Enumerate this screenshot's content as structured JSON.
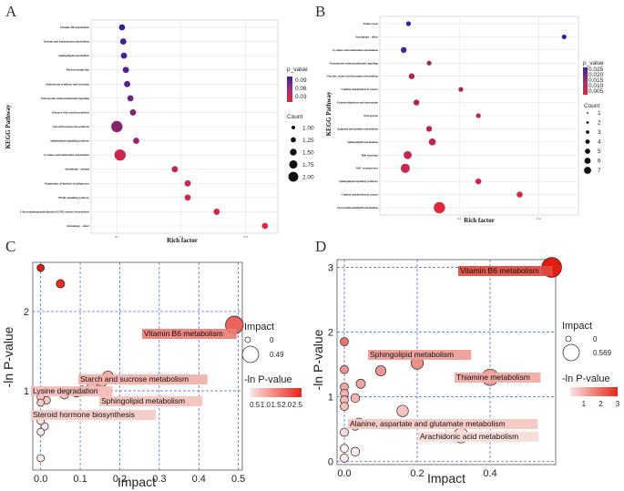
{
  "panel_labels": [
    "A",
    "B",
    "C",
    "D"
  ],
  "chart_data": [
    {
      "panel": "A",
      "type": "scatter",
      "xlabel": "Rich factor",
      "ylabel": "KEGG Pathway",
      "xticks": [
        0.1,
        0.2,
        0.3
      ],
      "xlim": [
        0.06,
        0.35
      ],
      "color_legend": {
        "title": "p_value",
        "ticks": [
          "0.09",
          "0.06",
          "0.03"
        ],
        "low_color": "#e0283c",
        "high_color": "#3a1f9a"
      },
      "size_legend": {
        "title": "Count",
        "ticks": [
          "1.00",
          "1.25",
          "1.50",
          "1.75",
          "2.00"
        ],
        "values": [
          1,
          1.25,
          1.5,
          1.75,
          2
        ]
      },
      "pathways": [
        {
          "name": "Vitamin B6 metabolism",
          "rich": 0.108,
          "count": 1,
          "p": 0.095
        },
        {
          "name": "Taurine and hypotaurine metabolism",
          "rich": 0.11,
          "count": 1,
          "p": 0.093
        },
        {
          "name": "Sphingolipid metabolism",
          "rich": 0.111,
          "count": 1,
          "p": 0.09
        },
        {
          "name": "Phototransduction",
          "rich": 0.114,
          "count": 1,
          "p": 0.085
        },
        {
          "name": "Aldosterone synthesis and secretion",
          "rich": 0.116,
          "count": 1,
          "p": 0.08
        },
        {
          "name": "Retrograde endocannabinoid signaling",
          "rich": 0.121,
          "count": 1,
          "p": 0.07
        },
        {
          "name": "Primary bile acid biosynthesis",
          "rich": 0.125,
          "count": 1,
          "p": 0.065
        },
        {
          "name": "Steroid hormone biosynthesis",
          "rich": 0.1,
          "count": 2,
          "p": 0.06
        },
        {
          "name": "Sphingolipid signaling pathway",
          "rich": 0.13,
          "count": 1,
          "p": 0.055
        },
        {
          "name": "Cysteine and methionine metabolism",
          "rich": 0.105,
          "count": 2,
          "p": 0.03
        },
        {
          "name": "Autophagy - animal",
          "rich": 0.19,
          "count": 1,
          "p": 0.035
        },
        {
          "name": "Regulation of lipolysis in adipocytes",
          "rich": 0.21,
          "count": 1,
          "p": 0.03
        },
        {
          "name": "PPAR signaling pathway",
          "rich": 0.21,
          "count": 1,
          "p": 0.03
        },
        {
          "name": "Glycosylphosphatidylinositol (GPI)-anchor biosynthesis",
          "rich": 0.255,
          "count": 1,
          "p": 0.027
        },
        {
          "name": "Autophagy - other",
          "rich": 0.33,
          "count": 1,
          "p": 0.02
        }
      ]
    },
    {
      "panel": "B",
      "type": "scatter",
      "xlabel": "Rich factor",
      "ylabel": "KEGG Pathway",
      "xticks": [
        0.1,
        0.2
      ],
      "xlim": [
        0.0,
        0.25
      ],
      "color_legend": {
        "title": "p_value",
        "ticks": [
          "0.025",
          "0.020",
          "0.015",
          "0.010",
          "0.005"
        ],
        "low_color": "#e0283c",
        "high_color": "#3a1f9a"
      },
      "size_legend": {
        "title": "Count",
        "ticks": [
          "1",
          "2",
          "3",
          "4",
          "5",
          "6",
          "7"
        ],
        "values": [
          1,
          2,
          3,
          4,
          5,
          6,
          7
        ]
      },
      "pathways": [
        {
          "name": "Endocytosis",
          "rich": 0.036,
          "count": 1,
          "p": 0.026
        },
        {
          "name": "Autophagy - other",
          "rich": 0.232,
          "count": 1,
          "p": 0.026
        },
        {
          "name": "Cysteine and methionine metabolism",
          "rich": 0.03,
          "count": 2,
          "p": 0.024
        },
        {
          "name": "Retrograde endocannabinoid signaling",
          "rich": 0.062,
          "count": 1,
          "p": 0.012
        },
        {
          "name": "Glycine, serine and threonine metabolism",
          "rich": 0.04,
          "count": 2,
          "p": 0.01
        },
        {
          "name": "Choline metabolism in cancer",
          "rich": 0.102,
          "count": 1,
          "p": 0.01
        },
        {
          "name": "Vitamin digestion and absorption",
          "rich": 0.046,
          "count": 2,
          "p": 0.009
        },
        {
          "name": "Necroptosis",
          "rich": 0.124,
          "count": 1,
          "p": 0.008
        },
        {
          "name": "Arginine and proline metabolism",
          "rich": 0.062,
          "count": 2,
          "p": 0.008
        },
        {
          "name": "Sphingolipid metabolism",
          "rich": 0.066,
          "count": 3,
          "p": 0.007
        },
        {
          "name": "Bile secretion",
          "rich": 0.035,
          "count": 4,
          "p": 0.006
        },
        {
          "name": "ABC transporters",
          "rich": 0.032,
          "count": 5,
          "p": 0.005
        },
        {
          "name": "Sphingolipid signaling pathway",
          "rich": 0.124,
          "count": 2,
          "p": 0.005
        },
        {
          "name": "Choline metabolism in cancer",
          "rich": 0.176,
          "count": 2,
          "p": 0.004
        },
        {
          "name": "Glycerophospholipid metabolism",
          "rich": 0.075,
          "count": 7,
          "p": 0.002
        }
      ]
    },
    {
      "panel": "C",
      "type": "scatter",
      "xlabel": "Impact",
      "ylabel": "-ln P-value",
      "xlim": [
        -0.02,
        0.51
      ],
      "ylim": [
        0.0,
        2.62
      ],
      "xticks": [
        0.0,
        0.1,
        0.2,
        0.3,
        0.4,
        0.5
      ],
      "yticks": [
        1,
        2
      ],
      "size_legend": {
        "title": "Impact",
        "ticks": [
          "0",
          "0.49"
        ]
      },
      "color_legend": {
        "title": "-ln P-value",
        "ticks": [
          "0.5",
          "1.0",
          "1.5",
          "2.0",
          "2.5"
        ],
        "min": 0.5,
        "max": 2.5
      },
      "points": [
        {
          "impact": 0.0,
          "value": 2.55
        },
        {
          "impact": 0.05,
          "value": 2.35
        },
        {
          "impact": 0.49,
          "value": 1.83
        },
        {
          "impact": 0.17,
          "value": 1.18
        },
        {
          "impact": 0.155,
          "value": 1.12
        },
        {
          "impact": 0.13,
          "value": 1.05
        },
        {
          "impact": 0.105,
          "value": 1.0
        },
        {
          "impact": 0.09,
          "value": 0.98
        },
        {
          "impact": 0.06,
          "value": 0.95
        },
        {
          "impact": 0.0,
          "value": 0.92
        },
        {
          "impact": 0.0,
          "value": 0.85
        },
        {
          "impact": 0.015,
          "value": 0.88
        },
        {
          "impact": 0.0,
          "value": 0.7
        },
        {
          "impact": 0.0,
          "value": 0.62
        },
        {
          "impact": 0.01,
          "value": 0.55
        },
        {
          "impact": 0.0,
          "value": 0.48
        },
        {
          "impact": 0.0,
          "value": 0.15
        }
      ],
      "annotations": [
        {
          "text": "Vitamin B6 metabolism",
          "impact": 0.49,
          "value": 1.83
        },
        {
          "text": "Starch and sucrose metabolism",
          "impact": 0.17,
          "value": 1.18
        },
        {
          "text": "Lysine degradation",
          "impact": 0.0,
          "value": 1.05
        },
        {
          "text": "Sphingolipid metabolism",
          "impact": 0.105,
          "value": 0.98
        },
        {
          "text": "Steroid hormone biosynthesis",
          "impact": 0.0,
          "value": 0.85
        }
      ]
    },
    {
      "panel": "D",
      "type": "scatter",
      "xlabel": "Impact",
      "ylabel": "-ln P-value",
      "xlim": [
        -0.02,
        0.58
      ],
      "ylim": [
        -0.05,
        3.12
      ],
      "xticks": [
        0.0,
        0.2,
        0.4
      ],
      "yticks": [
        0,
        1,
        2,
        3
      ],
      "size_legend": {
        "title": "Impact",
        "ticks": [
          "0",
          "0.569"
        ]
      },
      "color_legend": {
        "title": "-ln P-value",
        "ticks": [
          "1",
          "2",
          "3"
        ],
        "min": 0.2,
        "max": 3.0
      },
      "points": [
        {
          "impact": 0.569,
          "value": 3.0
        },
        {
          "impact": 0.0,
          "value": 1.85
        },
        {
          "impact": 0.2,
          "value": 1.52
        },
        {
          "impact": 0.1,
          "value": 1.4
        },
        {
          "impact": 0.4,
          "value": 1.3
        },
        {
          "impact": 0.0,
          "value": 1.42
        },
        {
          "impact": 0.045,
          "value": 1.2
        },
        {
          "impact": 0.0,
          "value": 1.15
        },
        {
          "impact": 0.0,
          "value": 1.05
        },
        {
          "impact": 0.0,
          "value": 0.95
        },
        {
          "impact": 0.03,
          "value": 0.98
        },
        {
          "impact": 0.0,
          "value": 0.85
        },
        {
          "impact": 0.16,
          "value": 0.78
        },
        {
          "impact": 0.04,
          "value": 0.6
        },
        {
          "impact": 0.03,
          "value": 0.55
        },
        {
          "impact": 0.0,
          "value": 0.45
        },
        {
          "impact": 0.32,
          "value": 0.4
        },
        {
          "impact": 0.0,
          "value": 0.2
        },
        {
          "impact": 0.03,
          "value": 0.15
        },
        {
          "impact": 0.0,
          "value": 0.05
        }
      ],
      "annotations": [
        {
          "text": "Vitamin B6 metabolism",
          "impact": 0.569,
          "value": 3.0
        },
        {
          "text": "Sphingolipid metabolism",
          "impact": 0.2,
          "value": 1.52
        },
        {
          "text": "Thiamine metabolism",
          "impact": 0.4,
          "value": 1.3
        },
        {
          "text": "Alanine, aspartate and glutamate metabolism",
          "impact": 0.16,
          "value": 0.78
        },
        {
          "text": "Arachidonic acid metabolism",
          "impact": 0.32,
          "value": 0.4
        }
      ]
    }
  ]
}
